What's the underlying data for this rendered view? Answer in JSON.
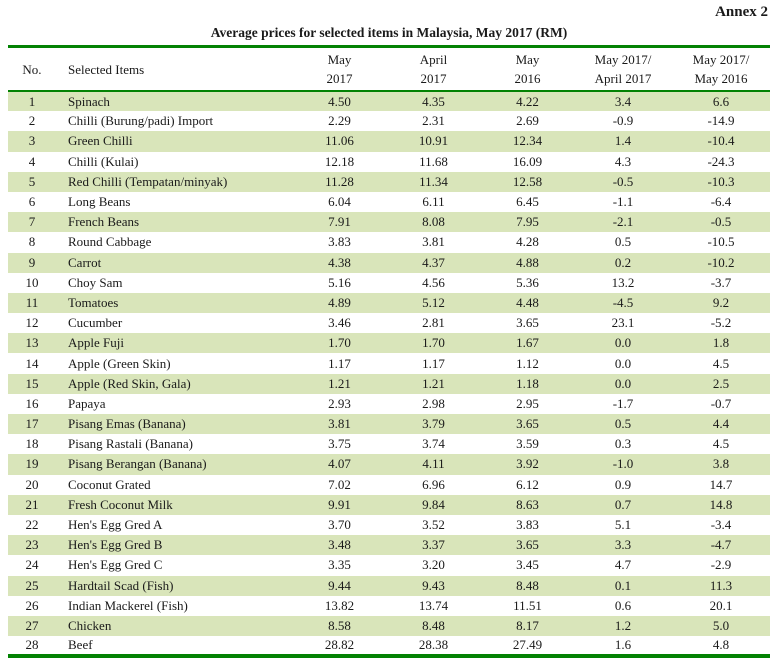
{
  "annex_label": "Annex 2",
  "colors": {
    "border_green": "#038203",
    "stripe_green": "#d9e5ba",
    "text": "#1a1a1a"
  },
  "table": {
    "title": "Average prices for selected items in Malaysia, May 2017 (RM)",
    "headers": [
      "No.",
      "Selected Items",
      "May\n2017",
      "April\n2017",
      "May\n2016",
      "May 2017/\nApril 2017",
      "May 2017/\nMay 2016"
    ],
    "rows": [
      [
        "1",
        "Spinach",
        "4.50",
        "4.35",
        "4.22",
        "3.4",
        "6.6"
      ],
      [
        "2",
        "Chilli (Burung/padi) Import",
        "2.29",
        "2.31",
        "2.69",
        "-0.9",
        "-14.9"
      ],
      [
        "3",
        "Green Chilli",
        "11.06",
        "10.91",
        "12.34",
        "1.4",
        "-10.4"
      ],
      [
        "4",
        "Chilli (Kulai)",
        "12.18",
        "11.68",
        "16.09",
        "4.3",
        "-24.3"
      ],
      [
        "5",
        "Red Chilli (Tempatan/minyak)",
        "11.28",
        "11.34",
        "12.58",
        "-0.5",
        "-10.3"
      ],
      [
        "6",
        "Long Beans",
        "6.04",
        "6.11",
        "6.45",
        "-1.1",
        "-6.4"
      ],
      [
        "7",
        "French Beans",
        "7.91",
        "8.08",
        "7.95",
        "-2.1",
        "-0.5"
      ],
      [
        "8",
        "Round Cabbage",
        "3.83",
        "3.81",
        "4.28",
        "0.5",
        "-10.5"
      ],
      [
        "9",
        "Carrot",
        "4.38",
        "4.37",
        "4.88",
        "0.2",
        "-10.2"
      ],
      [
        "10",
        "Choy Sam",
        "5.16",
        "4.56",
        "5.36",
        "13.2",
        "-3.7"
      ],
      [
        "11",
        "Tomatoes",
        "4.89",
        "5.12",
        "4.48",
        "-4.5",
        "9.2"
      ],
      [
        "12",
        "Cucumber",
        "3.46",
        "2.81",
        "3.65",
        "23.1",
        "-5.2"
      ],
      [
        "13",
        "Apple Fuji",
        "1.70",
        "1.70",
        "1.67",
        "0.0",
        "1.8"
      ],
      [
        "14",
        "Apple (Green Skin)",
        "1.17",
        "1.17",
        "1.12",
        "0.0",
        "4.5"
      ],
      [
        "15",
        "Apple (Red Skin, Gala)",
        "1.21",
        "1.21",
        "1.18",
        "0.0",
        "2.5"
      ],
      [
        "16",
        "Papaya",
        "2.93",
        "2.98",
        "2.95",
        "-1.7",
        "-0.7"
      ],
      [
        "17",
        "Pisang Emas (Banana)",
        "3.81",
        "3.79",
        "3.65",
        "0.5",
        "4.4"
      ],
      [
        "18",
        "Pisang Rastali (Banana)",
        "3.75",
        "3.74",
        "3.59",
        "0.3",
        "4.5"
      ],
      [
        "19",
        "Pisang Berangan (Banana)",
        "4.07",
        "4.11",
        "3.92",
        "-1.0",
        "3.8"
      ],
      [
        "20",
        "Coconut Grated",
        "7.02",
        "6.96",
        "6.12",
        "0.9",
        "14.7"
      ],
      [
        "21",
        "Fresh Coconut Milk",
        "9.91",
        "9.84",
        "8.63",
        "0.7",
        "14.8"
      ],
      [
        "22",
        "Hen's Egg Gred A",
        "3.70",
        "3.52",
        "3.83",
        "5.1",
        "-3.4"
      ],
      [
        "23",
        "Hen's Egg Gred B",
        "3.48",
        "3.37",
        "3.65",
        "3.3",
        "-4.7"
      ],
      [
        "24",
        "Hen's Egg Gred C",
        "3.35",
        "3.20",
        "3.45",
        "4.7",
        "-2.9"
      ],
      [
        "25",
        "Hardtail Scad (Fish)",
        "9.44",
        "9.43",
        "8.48",
        "0.1",
        "11.3"
      ],
      [
        "26",
        "Indian Mackerel (Fish)",
        "13.82",
        "13.74",
        "11.51",
        "0.6",
        "20.1"
      ],
      [
        "27",
        "Chicken",
        "8.58",
        "8.48",
        "8.17",
        "1.2",
        "5.0"
      ],
      [
        "28",
        "Beef",
        "28.82",
        "28.38",
        "27.49",
        "1.6",
        "4.8"
      ]
    ]
  }
}
